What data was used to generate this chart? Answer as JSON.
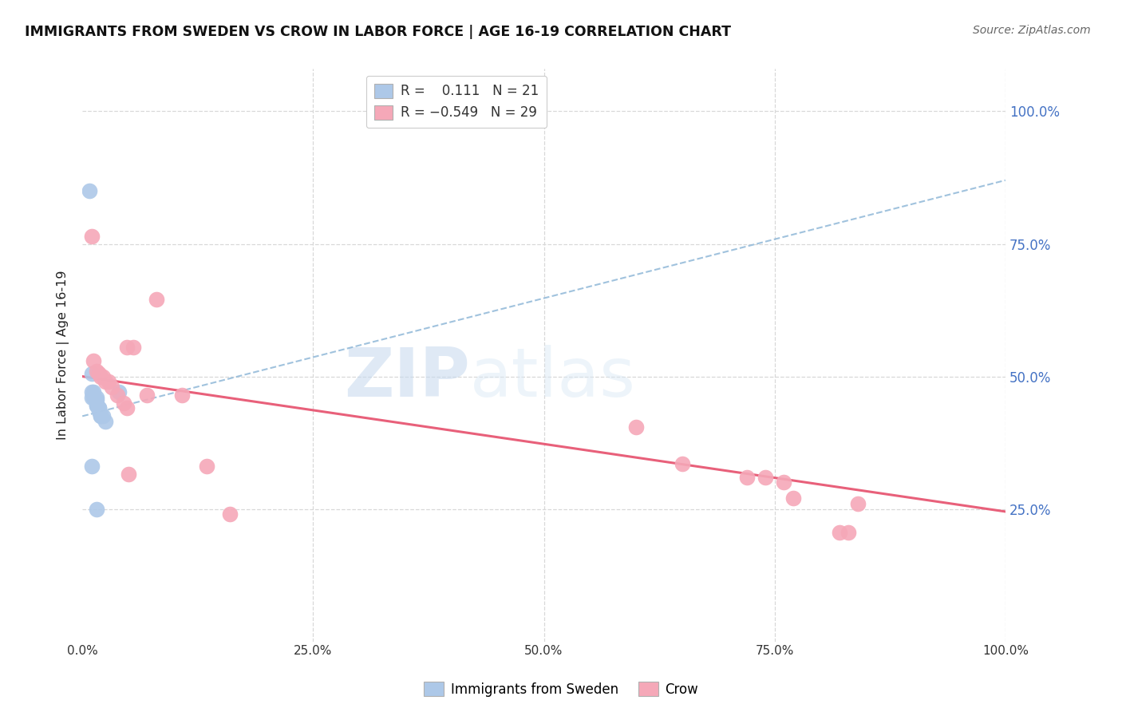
{
  "title": "IMMIGRANTS FROM SWEDEN VS CROW IN LABOR FORCE | AGE 16-19 CORRELATION CHART",
  "source": "Source: ZipAtlas.com",
  "ylabel": "In Labor Force | Age 16-19",
  "legend_label1": "Immigrants from Sweden",
  "legend_label2": "Crow",
  "color_blue": "#adc8e8",
  "color_pink": "#f5a8b8",
  "color_blue_line": "#90b8d8",
  "color_pink_line": "#e8607a",
  "watermark_zip": "ZIP",
  "watermark_atlas": "atlas",
  "sweden_x": [
    0.008,
    0.01,
    0.01,
    0.012,
    0.012,
    0.015,
    0.015,
    0.015,
    0.015,
    0.018,
    0.018,
    0.018,
    0.02,
    0.02,
    0.02,
    0.022,
    0.025,
    0.01,
    0.015,
    0.01,
    0.04
  ],
  "sweden_y": [
    0.85,
    0.505,
    0.47,
    0.47,
    0.46,
    0.46,
    0.455,
    0.445,
    0.445,
    0.44,
    0.44,
    0.435,
    0.43,
    0.425,
    0.425,
    0.425,
    0.415,
    0.33,
    0.25,
    0.46,
    0.47
  ],
  "crow_x": [
    0.01,
    0.012,
    0.015,
    0.018,
    0.02,
    0.022,
    0.025,
    0.028,
    0.032,
    0.038,
    0.045,
    0.048,
    0.055,
    0.08,
    0.108,
    0.135,
    0.16,
    0.07,
    0.048,
    0.05,
    0.6,
    0.65,
    0.72,
    0.74,
    0.76,
    0.77,
    0.82,
    0.83,
    0.84
  ],
  "crow_y": [
    0.765,
    0.53,
    0.51,
    0.505,
    0.5,
    0.5,
    0.49,
    0.49,
    0.48,
    0.465,
    0.45,
    0.44,
    0.555,
    0.645,
    0.465,
    0.33,
    0.24,
    0.465,
    0.555,
    0.315,
    0.405,
    0.335,
    0.31,
    0.31,
    0.3,
    0.27,
    0.205,
    0.205,
    0.26
  ],
  "sweden_trend_x": [
    0.0,
    1.0
  ],
  "sweden_trend_y": [
    0.425,
    0.87
  ],
  "crow_trend_x": [
    0.0,
    1.0
  ],
  "crow_trend_y": [
    0.5,
    0.245
  ],
  "xlim": [
    0.0,
    1.0
  ],
  "ylim": [
    0.0,
    1.08
  ],
  "yticks": [
    0.25,
    0.5,
    0.75,
    1.0
  ],
  "xticks": [
    0.0,
    0.25,
    0.5,
    0.75,
    1.0
  ],
  "grid_color": "#d8d8d8",
  "right_tick_color": "#4472c4"
}
